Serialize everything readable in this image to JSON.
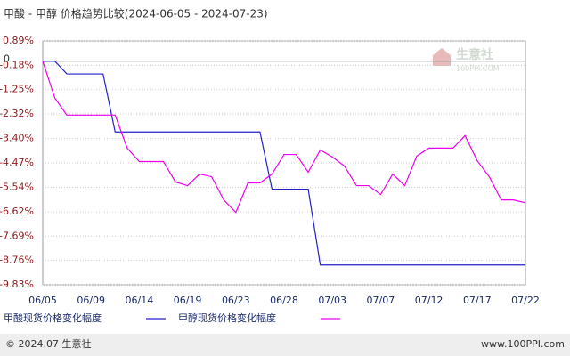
{
  "chart_data": {
    "type": "line",
    "title": "甲酸 - 甲醇 价格趋势比较(2024-06-05 - 2024-07-23)",
    "watermark": "生意社",
    "watermark_sub": "100PPI.COM",
    "footer_left": "© 2024.07 生意社",
    "footer_right": "www.100PPI.com",
    "zero_line": {
      "value": 0,
      "label": "0"
    },
    "categories": [
      "06/05",
      null,
      null,
      null,
      "06/09",
      null,
      null,
      null,
      "06/14",
      null,
      null,
      null,
      "06/19",
      null,
      null,
      null,
      "06/23",
      null,
      null,
      null,
      "06/28",
      null,
      null,
      null,
      "07/03",
      null,
      null,
      null,
      "07/07",
      null,
      null,
      null,
      "07/12",
      null,
      null,
      null,
      "07/17",
      null,
      null,
      null,
      "07/22"
    ],
    "ylim": [
      -9.83,
      0.89
    ],
    "yticks": [
      {
        "value": 0.89,
        "label": "0.89%"
      },
      {
        "value": -0.18,
        "label": "-0.18%"
      },
      {
        "value": -1.25,
        "label": "-1.25%"
      },
      {
        "value": -2.32,
        "label": "-2.32%"
      },
      {
        "value": -3.4,
        "label": "-3.40%"
      },
      {
        "value": -4.47,
        "label": "-4.47%"
      },
      {
        "value": -5.54,
        "label": "-5.54%"
      },
      {
        "value": -6.62,
        "label": "-6.62%"
      },
      {
        "value": -7.69,
        "label": "-7.69%"
      },
      {
        "value": -8.76,
        "label": "-8.76%"
      },
      {
        "value": -9.83,
        "label": "-9.83%"
      }
    ],
    "grid": true,
    "series": [
      {
        "name": "甲酸现货价格变化幅度",
        "color": "#2222cc",
        "values": [
          0,
          0,
          -0.56,
          -0.56,
          -0.56,
          -0.56,
          -3.11,
          -3.11,
          -3.11,
          -3.11,
          -3.11,
          -3.11,
          -3.11,
          -3.11,
          -3.11,
          -3.11,
          -3.11,
          -3.11,
          -3.11,
          -5.63,
          -5.63,
          -5.63,
          -5.63,
          -8.96,
          -8.96,
          -8.96,
          -8.96,
          -8.96,
          -8.96,
          -8.96,
          -8.96,
          -8.96,
          -8.96,
          -8.96,
          -8.96,
          -8.96,
          -8.96,
          -8.96,
          -8.96,
          -8.96,
          -8.96
        ]
      },
      {
        "name": "甲醇现货价格变化幅度",
        "color": "#ee00ee",
        "values": [
          0,
          -1.62,
          -2.37,
          -2.37,
          -2.37,
          -2.37,
          -2.37,
          -3.82,
          -4.41,
          -4.41,
          -4.41,
          -5.31,
          -5.47,
          -4.96,
          -5.08,
          -6.1,
          -6.65,
          -5.35,
          -5.35,
          -4.96,
          -4.1,
          -4.1,
          -4.88,
          -3.9,
          -4.21,
          -4.61,
          -5.47,
          -5.47,
          -5.86,
          -4.96,
          -5.47,
          -4.17,
          -3.82,
          -3.82,
          -3.82,
          -3.27,
          -4.37,
          -5.08,
          -6.1,
          -6.1,
          -6.22
        ]
      }
    ]
  }
}
